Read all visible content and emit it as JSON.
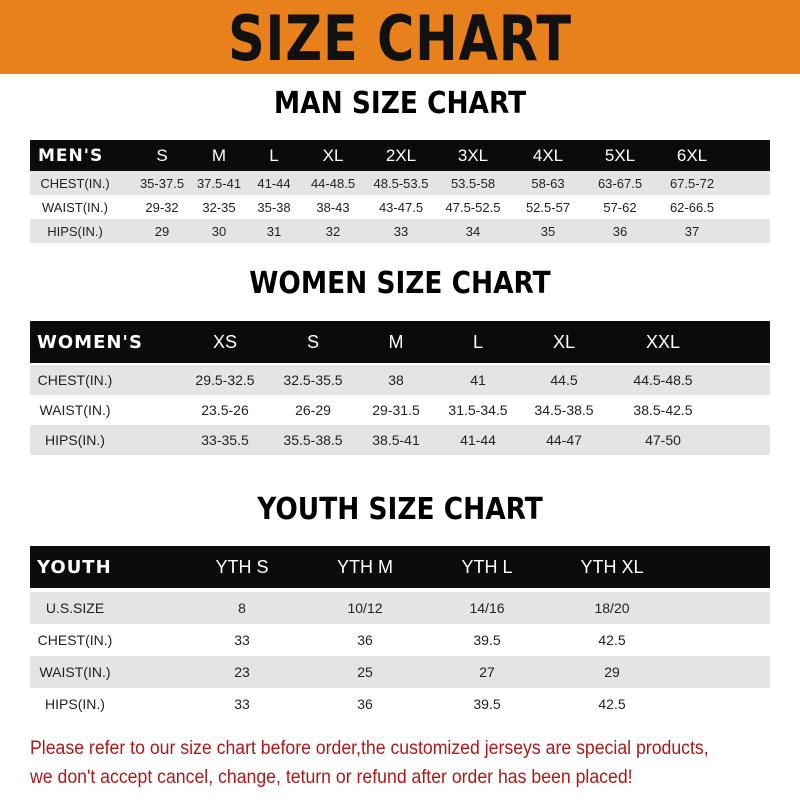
{
  "banner": {
    "title": "SIZE CHART",
    "color": "#E8801C"
  },
  "men": {
    "title": "MAN SIZE CHART",
    "headers": [
      "MEN'S",
      "S",
      "M",
      "L",
      "XL",
      "2XL",
      "3XL",
      "4XL",
      "5XL",
      "6XL"
    ],
    "rows": [
      [
        "CHEST(IN.)",
        "35-37.5",
        "37.5-41",
        "41-44",
        "44-48.5",
        "48.5-53.5",
        "53.5-58",
        "58-63",
        "63-67.5",
        "67.5-72"
      ],
      [
        "WAIST(IN.)",
        "29-32",
        "32-35",
        "35-38",
        "38-43",
        "43-47.5",
        "47.5-52.5",
        "52.5-57",
        "57-62",
        "62-66.5"
      ],
      [
        "HIPS(IN.)",
        "29",
        "30",
        "31",
        "32",
        "33",
        "34",
        "35",
        "36",
        "37"
      ]
    ]
  },
  "women": {
    "title": "WOMEN SIZE CHART",
    "headers": [
      "WOMEN'S",
      "XS",
      "S",
      "M",
      "L",
      "XL",
      "XXL"
    ],
    "rows": [
      [
        "CHEST(IN.)",
        "29.5-32.5",
        "32.5-35.5",
        "38",
        "41",
        "44.5",
        "44.5-48.5"
      ],
      [
        "WAIST(IN.)",
        "23.5-26",
        "26-29",
        "29-31.5",
        "31.5-34.5",
        "34.5-38.5",
        "38.5-42.5"
      ],
      [
        "HIPS(IN.)",
        "33-35.5",
        "35.5-38.5",
        "38.5-41",
        "41-44",
        "44-47",
        "47-50"
      ]
    ]
  },
  "youth": {
    "title": "YOUTH SIZE CHART",
    "headers": [
      "YOUTH",
      "YTH S",
      "YTH M",
      "YTH L",
      "YTH XL"
    ],
    "rows": [
      [
        "U.S.SIZE",
        "8",
        "10/12",
        "14/16",
        "18/20"
      ],
      [
        "CHEST(IN.)",
        "33",
        "36",
        "39.5",
        "42.5"
      ],
      [
        "WAIST(IN.)",
        "23",
        "25",
        "27",
        "29"
      ],
      [
        "HIPS(IN.)",
        "33",
        "36",
        "39.5",
        "42.5"
      ]
    ]
  },
  "footer": {
    "line1": "Please refer to our size chart before order,the customized jerseys are special products,",
    "line2": "we don't accept cancel, change, teturn or refund after order has been placed!",
    "color": "#b01818"
  }
}
